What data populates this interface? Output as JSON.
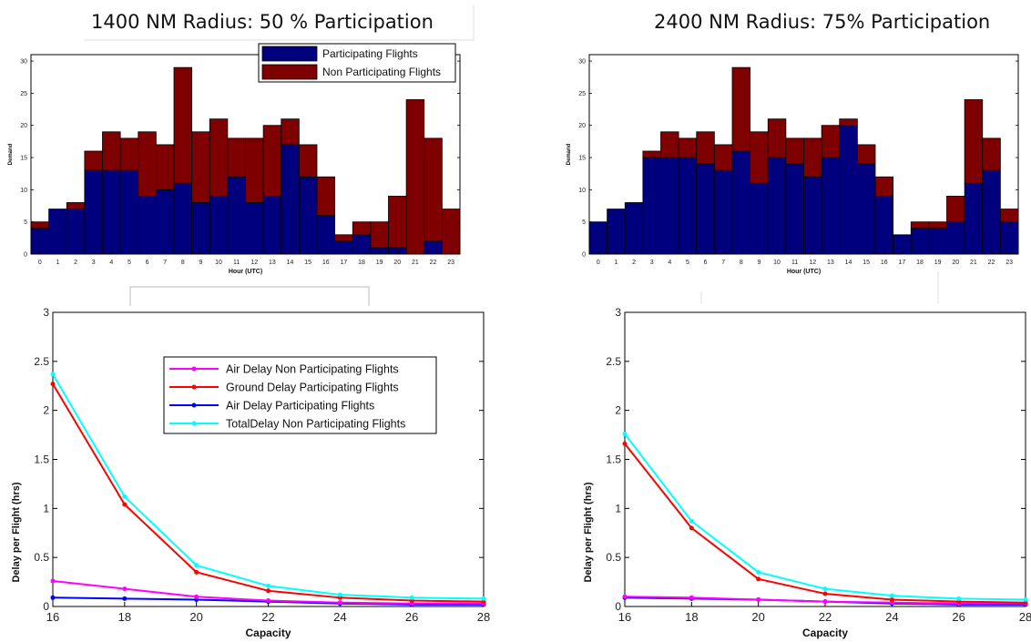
{
  "panels": {
    "left": {
      "title": "1400 NM Radius: 50 % Participation"
    },
    "right": {
      "title": "2400 NM Radius: 75% Participation"
    }
  },
  "colors": {
    "participating": "#00007f",
    "non_participating": "#7f0000",
    "air_nonpart": "#ff00ff",
    "ground_part": "#ff0000",
    "air_part": "#0000ff",
    "total_nonpart": "#00ffff"
  },
  "chart_data": [
    {
      "id": "bar_left",
      "type": "bar",
      "stacked": true,
      "title": "1400 NM Radius: 50 % Participation",
      "xlabel": "Hour (UTC)",
      "ylabel": "Demand",
      "ylim": [
        0,
        31
      ],
      "yticks": [
        0,
        5,
        10,
        15,
        20,
        25,
        30
      ],
      "categories": [
        "0",
        "1",
        "2",
        "3",
        "4",
        "5",
        "6",
        "7",
        "8",
        "9",
        "10",
        "11",
        "12",
        "13",
        "14",
        "15",
        "16",
        "17",
        "18",
        "19",
        "20",
        "21",
        "22",
        "23"
      ],
      "series": [
        {
          "name": "Participating Flights",
          "values": [
            4,
            7,
            7,
            13,
            13,
            13,
            9,
            10,
            11,
            8,
            9,
            12,
            8,
            9,
            17,
            12,
            6,
            2,
            3,
            1,
            1,
            0,
            2,
            0
          ]
        },
        {
          "name": "Non Participating Flights",
          "values": [
            1,
            0,
            1,
            3,
            6,
            5,
            10,
            7,
            18,
            11,
            12,
            6,
            10,
            11,
            4,
            5,
            6,
            1,
            2,
            4,
            8,
            24,
            16,
            7
          ]
        }
      ],
      "legend": "top-right",
      "grid": false
    },
    {
      "id": "bar_right",
      "type": "bar",
      "stacked": true,
      "title": "2400 NM Radius: 75% Participation",
      "xlabel": "Hour (UTC)",
      "ylabel": "Demand",
      "ylim": [
        0,
        31
      ],
      "yticks": [
        0,
        5,
        10,
        15,
        20,
        25,
        30
      ],
      "categories": [
        "0",
        "1",
        "2",
        "3",
        "4",
        "5",
        "6",
        "7",
        "8",
        "9",
        "10",
        "11",
        "12",
        "13",
        "14",
        "15",
        "16",
        "17",
        "18",
        "19",
        "20",
        "21",
        "22",
        "23"
      ],
      "series": [
        {
          "name": "Participating Flights",
          "values": [
            5,
            7,
            8,
            15,
            15,
            15,
            14,
            13,
            16,
            11,
            15,
            14,
            12,
            15,
            20,
            14,
            9,
            3,
            4,
            4,
            5,
            11,
            13,
            5
          ]
        },
        {
          "name": "Non Participating Flights",
          "values": [
            0,
            0,
            0,
            1,
            4,
            3,
            5,
            4,
            13,
            8,
            6,
            4,
            6,
            5,
            1,
            3,
            3,
            0,
            1,
            1,
            4,
            13,
            5,
            2
          ]
        }
      ],
      "grid": false
    },
    {
      "id": "line_left",
      "type": "line",
      "xlabel": "Capacity",
      "ylabel": "Delay per Flight (hrs)",
      "xlim": [
        16,
        28
      ],
      "ylim": [
        0,
        3
      ],
      "xticks": [
        16,
        18,
        20,
        22,
        24,
        26,
        28
      ],
      "yticks": [
        0,
        0.5,
        1,
        1.5,
        2,
        2.5,
        3
      ],
      "ytick_labels": [
        "0",
        "0.5",
        "1",
        "1.5",
        "2",
        "2.5",
        "3"
      ],
      "x": [
        16,
        18,
        20,
        22,
        24,
        26,
        28
      ],
      "series": [
        {
          "name": "Air Delay Non Participating Flights",
          "values": [
            0.26,
            0.18,
            0.1,
            0.06,
            0.04,
            0.03,
            0.03
          ]
        },
        {
          "name": "Ground Delay Participating Flights",
          "values": [
            2.27,
            1.04,
            0.35,
            0.16,
            0.09,
            0.06,
            0.05
          ]
        },
        {
          "name": "Air Delay Participating Flights",
          "values": [
            0.09,
            0.08,
            0.07,
            0.05,
            0.03,
            0.02,
            0.02
          ]
        },
        {
          "name": "TotalDelay Non Participating Flights",
          "values": [
            2.37,
            1.12,
            0.42,
            0.21,
            0.12,
            0.09,
            0.08
          ]
        }
      ],
      "legend": "upper-center",
      "grid": false
    },
    {
      "id": "line_right",
      "type": "line",
      "xlabel": "Capacity",
      "ylabel": "Delay per Flight (hrs)",
      "xlim": [
        16,
        28
      ],
      "ylim": [
        0,
        3
      ],
      "xticks": [
        16,
        18,
        20,
        22,
        24,
        26,
        28
      ],
      "yticks": [
        0,
        0.5,
        1,
        1.5,
        2,
        2.5,
        3
      ],
      "ytick_labels": [
        "0",
        "0.5",
        "1",
        "1.5",
        "2",
        "2.5",
        "3"
      ],
      "x": [
        16,
        18,
        20,
        22,
        24,
        26,
        28
      ],
      "series": [
        {
          "values": [
            0.1,
            0.09,
            0.07,
            0.05,
            0.04,
            0.03,
            0.03
          ]
        },
        {
          "values": [
            1.66,
            0.8,
            0.28,
            0.13,
            0.07,
            0.05,
            0.04
          ]
        },
        {
          "values": [
            0.09,
            0.08,
            0.07,
            0.05,
            0.03,
            0.02,
            0.02
          ]
        },
        {
          "values": [
            1.76,
            0.87,
            0.35,
            0.18,
            0.11,
            0.08,
            0.07
          ]
        }
      ],
      "grid": false
    }
  ]
}
